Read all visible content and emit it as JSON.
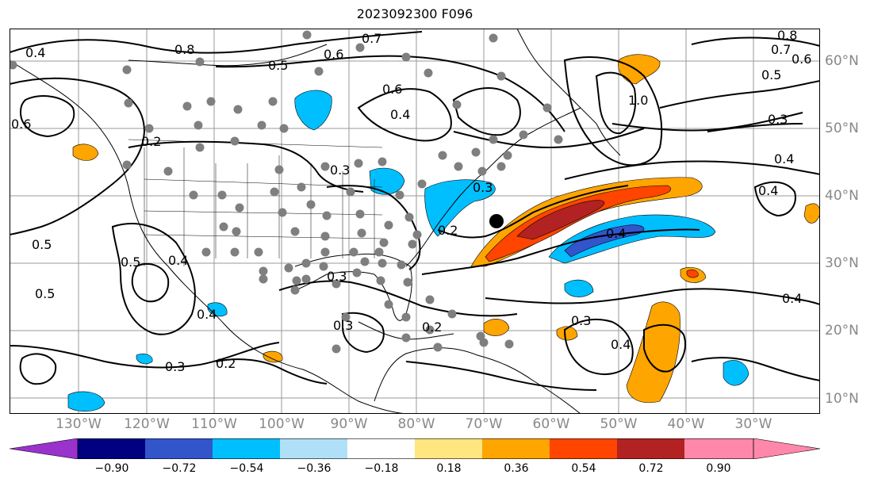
{
  "title": "2023092300 F096",
  "lon_labels": [
    {
      "label": "130°W"
    },
    {
      "label": "120°W"
    },
    {
      "label": "110°W"
    },
    {
      "label": "100°W"
    },
    {
      "label": "90°W"
    },
    {
      "label": "80°W"
    },
    {
      "label": "70°W"
    },
    {
      "label": "60°W"
    },
    {
      "label": "50°W"
    },
    {
      "label": "40°W"
    },
    {
      "label": "30°W"
    }
  ],
  "lat_labels": [
    {
      "label": "60°N"
    },
    {
      "label": "50°N"
    },
    {
      "label": "40°N"
    },
    {
      "label": "30°N"
    },
    {
      "label": "20°N"
    },
    {
      "label": "10°N"
    }
  ],
  "colorbar": {
    "ticks": [
      "−0.90",
      "−0.72",
      "−0.54",
      "−0.36",
      "−0.18",
      "0.18",
      "0.36",
      "0.54",
      "0.72",
      "0.90"
    ],
    "colors": [
      "#9933cc",
      "#000080",
      "#3355cc",
      "#00bfff",
      "#b0e0f8",
      "#ffffff",
      "#ffe680",
      "#ffa500",
      "#ff4500",
      "#b22222",
      "#ff88aa"
    ]
  },
  "contour_labels": [
    "0.7",
    "0.8",
    "0.7",
    "0.6",
    "0.6",
    "0.5",
    "0.5",
    "0.4",
    "0.6",
    "0.8",
    "1.0",
    "0.6",
    "0.3",
    "0.4",
    "0.2",
    "0.3",
    "0.4",
    "0.5",
    "0.5",
    "0.5",
    "0.4",
    "0.3",
    "0.4",
    "0.3",
    "0.2",
    "0.3",
    "0.2",
    "0.4",
    "0.3",
    "0.4",
    "0.4",
    "0.2",
    "0.3",
    "0.4"
  ],
  "marker": {
    "label": "storm-center"
  }
}
